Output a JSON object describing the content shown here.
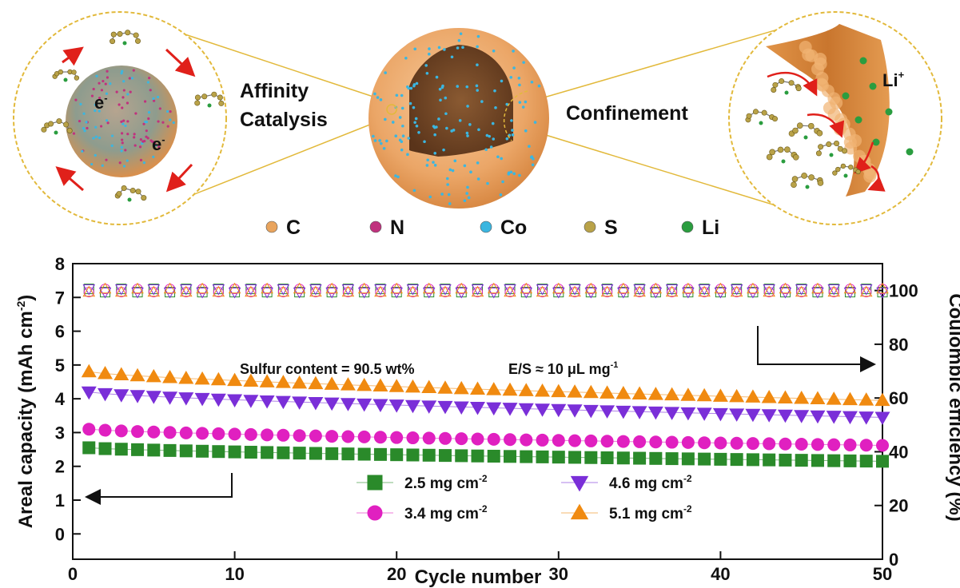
{
  "schematic": {
    "left_label_line1": "Affinity",
    "left_label_line2": "Catalysis",
    "right_label": "Confinement",
    "electron": "e",
    "electron_sup": "-",
    "li_ion": "Li",
    "li_ion_sup": "+",
    "legend": [
      {
        "label": "C",
        "color": "#e9a45d"
      },
      {
        "label": "N",
        "color": "#c0327e"
      },
      {
        "label": "Co",
        "color": "#3bb6e0"
      },
      {
        "label": "S",
        "color": "#b9a248"
      },
      {
        "label": "Li",
        "color": "#2a9d3f"
      }
    ]
  },
  "chart_data": {
    "type": "scatter",
    "xlabel": "Cycle number",
    "ylabel_left": "Areal capacity (mAh cm",
    "ylabel_left_sup": "-2",
    "ylabel_left_close": ")",
    "ylabel_right": "Coulombic efficiency (%)",
    "xlim": [
      0,
      50
    ],
    "ylim_left": [
      -0.75,
      8
    ],
    "ylim_right": [
      0,
      110
    ],
    "xticks": [
      0,
      10,
      20,
      30,
      40,
      50
    ],
    "yticks_left": [
      0,
      1,
      2,
      3,
      4,
      5,
      6,
      7,
      8
    ],
    "yticks_right": [
      0,
      20,
      40,
      60,
      80,
      100
    ],
    "annotation_sulfur": "Sulfur content = 90.5 wt%",
    "annotation_es_prefix": "E/S ≈ 10 μL mg",
    "annotation_es_sup": "-1",
    "legend_unit": " mg cm",
    "legend_unit_sup": "-2",
    "series": [
      {
        "name": "2.5",
        "marker": "square",
        "color": "#2a8a2a",
        "start": 2.55,
        "end": 2.15,
        "ce": 100
      },
      {
        "name": "3.4",
        "marker": "circle",
        "color": "#e020c0",
        "start": 3.1,
        "end": 2.62,
        "ce": 100
      },
      {
        "name": "4.6",
        "marker": "triangle-down",
        "color": "#7a2fd8",
        "start": 4.2,
        "end": 3.45,
        "ce": 100
      },
      {
        "name": "5.1",
        "marker": "triangle-up",
        "color": "#f08a10",
        "start": 4.8,
        "end": 3.95,
        "ce": 100
      }
    ]
  }
}
